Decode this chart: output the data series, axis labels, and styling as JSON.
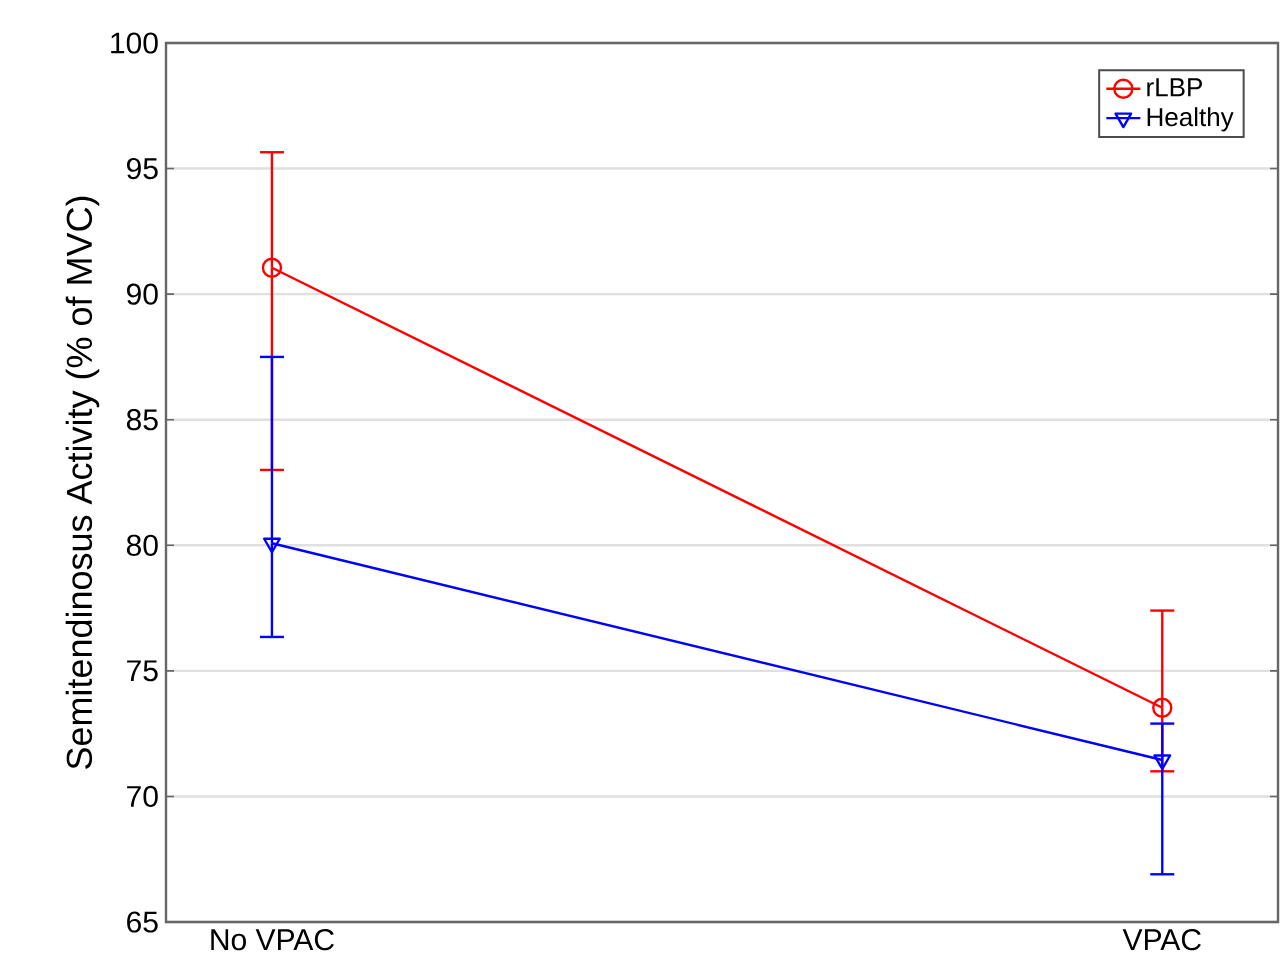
{
  "chart_data": {
    "type": "line",
    "ylabel": "Semitendinosus Activity (% of MVC)",
    "categories": [
      "No VPAC",
      "VPAC"
    ],
    "ylim": [
      65,
      100
    ],
    "yticks": [
      65,
      70,
      75,
      80,
      85,
      90,
      95,
      100
    ],
    "grid": "y",
    "legend": "top right",
    "line_style": "solid",
    "series": [
      {
        "name": "rLBP",
        "color": "#ff0000",
        "marker": "circle",
        "values": [
          91.05,
          73.53
        ],
        "errors": [
          [
            83.0,
            95.65
          ],
          [
            71.0,
            77.4
          ]
        ]
      },
      {
        "name": "Healthy",
        "color": "#0000ff",
        "marker": "triangle",
        "values": [
          80.08,
          71.45
        ],
        "errors": [
          [
            76.35,
            87.5
          ],
          [
            66.9,
            72.9
          ]
        ]
      }
    ]
  }
}
